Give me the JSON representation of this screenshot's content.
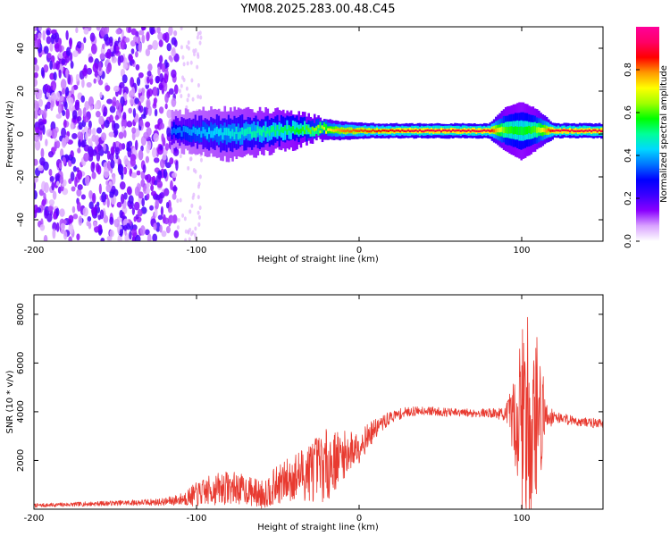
{
  "page_title": "YM08.2025.283.00.48.C45",
  "chart_data": [
    {
      "type": "heatmap",
      "title": "YM08.2025.283.00.48.C45",
      "xlabel": "Height of straight line (km)",
      "ylabel": "Frequency (Hz)",
      "xlim": [
        -200,
        150
      ],
      "ylim": [
        -50,
        50
      ],
      "x_ticks": [
        -200,
        -100,
        0,
        100
      ],
      "x_tick_labels": [
        "-200",
        "-100",
        "0",
        "100"
      ],
      "y_ticks": [
        -40,
        -20,
        0,
        20,
        40
      ],
      "y_tick_labels": [
        "-40",
        "-20",
        "0",
        "20",
        "40"
      ],
      "noise_region_x": [
        -200,
        -112
      ],
      "signal_band": [
        {
          "x": -115,
          "freq": 1.5,
          "half_width": 5,
          "amplitude": 0.35
        },
        {
          "x": -100,
          "freq": 1,
          "half_width": 6,
          "amplitude": 0.4
        },
        {
          "x": -80,
          "freq": 0,
          "half_width": 7,
          "amplitude": 0.45
        },
        {
          "x": -60,
          "freq": 1,
          "half_width": 6,
          "amplitude": 0.5
        },
        {
          "x": -40,
          "freq": 2,
          "half_width": 5,
          "amplitude": 0.55
        },
        {
          "x": -25,
          "freq": 2.5,
          "half_width": 3,
          "amplitude": 0.65
        },
        {
          "x": -10,
          "freq": 1.5,
          "half_width": 2.5,
          "amplitude": 0.8
        },
        {
          "x": 10,
          "freq": 1.5,
          "half_width": 2,
          "amplitude": 0.85
        },
        {
          "x": 40,
          "freq": 1.5,
          "half_width": 2,
          "amplitude": 0.9
        },
        {
          "x": 80,
          "freq": 1.5,
          "half_width": 2,
          "amplitude": 0.9
        },
        {
          "x": 90,
          "freq": 2,
          "half_width": 6,
          "amplitude": 0.6
        },
        {
          "x": 100,
          "freq": 1.5,
          "half_width": 8,
          "amplitude": 0.55
        },
        {
          "x": 108,
          "freq": 2,
          "half_width": 6,
          "amplitude": 0.6
        },
        {
          "x": 120,
          "freq": 1.5,
          "half_width": 2,
          "amplitude": 0.9
        },
        {
          "x": 150,
          "freq": 1.5,
          "half_width": 2,
          "amplitude": 0.9
        }
      ],
      "colorbar": {
        "label": "Normalized spectral amplitude",
        "range": [
          0,
          1
        ],
        "ticks": [
          0,
          0.2,
          0.4,
          0.6,
          0.8
        ],
        "tick_labels": [
          "0.0",
          "0.2",
          "0.4",
          "0.6",
          "0.8"
        ],
        "colors": [
          "#ffffff",
          "#d9a3ff",
          "#8a00ff",
          "#3b00ff",
          "#0000ff",
          "#0073ff",
          "#00d8ff",
          "#00ff99",
          "#00ff00",
          "#a0ff00",
          "#ffff00",
          "#ff9900",
          "#ff0000",
          "#ff0066",
          "#ff0099"
        ]
      }
    },
    {
      "type": "line",
      "xlabel": "Height of straight line (km)",
      "ylabel": "SNR (10 * v/v)",
      "xlim": [
        -200,
        150
      ],
      "ylim": [
        0,
        8800
      ],
      "x_ticks": [
        -200,
        -100,
        0,
        100
      ],
      "x_tick_labels": [
        "-200",
        "-100",
        "0",
        "100"
      ],
      "y_ticks": [
        2000,
        4000,
        6000,
        8000
      ],
      "y_tick_labels": [
        "2000",
        "4000",
        "6000",
        "8000"
      ],
      "line_color": "#e83a30",
      "envelope": {
        "x": [
          -200,
          -150,
          -120,
          -110,
          -100,
          -90,
          -80,
          -70,
          -60,
          -50,
          -40,
          -30,
          -20,
          -10,
          0,
          10,
          20,
          30,
          40,
          50,
          60,
          70,
          80,
          90,
          95,
          100,
          105,
          110,
          115,
          120,
          135,
          150
        ],
        "base": [
          150,
          250,
          300,
          400,
          600,
          800,
          900,
          800,
          600,
          1000,
          1300,
          1600,
          1800,
          2200,
          2600,
          3300,
          3800,
          4000,
          4050,
          4000,
          3950,
          3950,
          3950,
          3900,
          3800,
          3600,
          3700,
          3800,
          3850,
          3800,
          3600,
          3500
        ],
        "amp": [
          80,
          100,
          150,
          250,
          500,
          650,
          700,
          600,
          600,
          800,
          1000,
          1300,
          1500,
          1000,
          700,
          400,
          250,
          200,
          180,
          180,
          180,
          180,
          180,
          300,
          1500,
          4500,
          4500,
          3500,
          700,
          250,
          200,
          200
        ]
      }
    }
  ]
}
